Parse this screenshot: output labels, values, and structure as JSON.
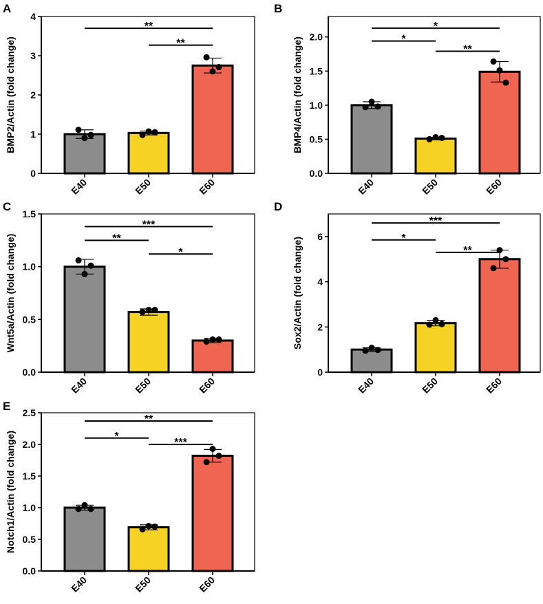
{
  "colors": {
    "E40": "#8c8c8c",
    "E50": "#f6d224",
    "E60": "#ef6552",
    "outline": "#000000"
  },
  "chart_data": [
    {
      "type": "bar",
      "panel": "A",
      "ylabel": "BMP2/Actin (fold change)",
      "categories": [
        "E40",
        "E50",
        "E60"
      ],
      "values": [
        1.0,
        1.03,
        2.75
      ],
      "sd": [
        0.11,
        0.05,
        0.19
      ],
      "points": [
        [
          1.11,
          0.9,
          0.98
        ],
        [
          0.98,
          1.07,
          1.05
        ],
        [
          2.96,
          2.6,
          2.71
        ]
      ],
      "ylim": [
        0,
        4
      ],
      "yticks": [
        0,
        1,
        2,
        3,
        4
      ],
      "ytick_labels": [
        "0",
        "1",
        "2",
        "3",
        "4"
      ],
      "significance": [
        {
          "from": "E40",
          "to": "E60",
          "label": "**",
          "y": 3.7
        },
        {
          "from": "E50",
          "to": "E60",
          "label": "**",
          "y": 3.27
        }
      ]
    },
    {
      "type": "bar",
      "panel": "B",
      "ylabel": "BMP4/Actin (fold change)",
      "categories": [
        "E40",
        "E50",
        "E60"
      ],
      "values": [
        1.0,
        0.51,
        1.49
      ],
      "sd": [
        0.05,
        0.02,
        0.15
      ],
      "points": [
        [
          0.97,
          1.05,
          0.98
        ],
        [
          0.5,
          0.53,
          0.52
        ],
        [
          1.64,
          1.51,
          1.33
        ]
      ],
      "ylim": [
        0,
        2.3
      ],
      "yticks": [
        0,
        0.5,
        1.0,
        1.5,
        2.0
      ],
      "ytick_labels": [
        "0.0",
        "0.5",
        "1.0",
        "1.5",
        "2.0"
      ],
      "significance": [
        {
          "from": "E40",
          "to": "E60",
          "label": "*",
          "y": 2.13
        },
        {
          "from": "E40",
          "to": "E50",
          "label": "*",
          "y": 1.94
        },
        {
          "from": "E50",
          "to": "E60",
          "label": "**",
          "y": 1.79
        }
      ]
    },
    {
      "type": "bar",
      "panel": "C",
      "ylabel": "Wnt5a/Actin (fold change)",
      "categories": [
        "E40",
        "E50",
        "E60"
      ],
      "values": [
        1.0,
        0.57,
        0.3
      ],
      "sd": [
        0.07,
        0.03,
        0.02
      ],
      "points": [
        [
          1.06,
          0.93,
          1.01
        ],
        [
          0.57,
          0.59,
          0.59
        ],
        [
          0.29,
          0.31,
          0.31
        ]
      ],
      "ylim": [
        0,
        1.5
      ],
      "yticks": [
        0,
        0.5,
        1.0,
        1.5
      ],
      "ytick_labels": [
        "0.0",
        "0.5",
        "1.0",
        "1.5"
      ],
      "significance": [
        {
          "from": "E40",
          "to": "E60",
          "label": "***",
          "y": 1.38
        },
        {
          "from": "E40",
          "to": "E50",
          "label": "**",
          "y": 1.25
        },
        {
          "from": "E50",
          "to": "E60",
          "label": "*",
          "y": 1.12
        }
      ]
    },
    {
      "type": "bar",
      "panel": "D",
      "ylabel": "Sox2/Actin (fold change)",
      "categories": [
        "E40",
        "E50",
        "E60"
      ],
      "values": [
        1.0,
        2.17,
        5.0
      ],
      "sd": [
        0.08,
        0.12,
        0.4
      ],
      "points": [
        [
          0.95,
          1.08,
          0.98
        ],
        [
          2.1,
          2.3,
          2.13
        ],
        [
          4.6,
          5.4,
          5.0
        ]
      ],
      "ylim": [
        0,
        7
      ],
      "yticks": [
        0,
        2,
        4,
        6
      ],
      "ytick_labels": [
        "0",
        "2",
        "4",
        "6"
      ],
      "significance": [
        {
          "from": "E40",
          "to": "E60",
          "label": "***",
          "y": 6.6
        },
        {
          "from": "E40",
          "to": "E50",
          "label": "*",
          "y": 5.85
        },
        {
          "from": "E50",
          "to": "E60",
          "label": "**",
          "y": 5.3
        }
      ]
    },
    {
      "type": "bar",
      "panel": "E",
      "ylabel": "Notch1/Actin (fold change)",
      "categories": [
        "E40",
        "E50",
        "E60"
      ],
      "values": [
        1.0,
        0.69,
        1.82
      ],
      "sd": [
        0.04,
        0.04,
        0.1
      ],
      "points": [
        [
          0.98,
          1.04,
          0.98
        ],
        [
          0.66,
          0.71,
          0.7
        ],
        [
          1.72,
          1.93,
          1.82
        ]
      ],
      "ylim": [
        0,
        2.5
      ],
      "yticks": [
        0,
        0.5,
        1.0,
        1.5,
        2.0,
        2.5
      ],
      "ytick_labels": [
        "0.0",
        "0.5",
        "1.0",
        "1.5",
        "2.0",
        "2.5"
      ],
      "significance": [
        {
          "from": "E40",
          "to": "E60",
          "label": "**",
          "y": 2.37
        },
        {
          "from": "E40",
          "to": "E50",
          "label": "*",
          "y": 2.1
        },
        {
          "from": "E50",
          "to": "E60",
          "label": "***",
          "y": 2.0
        }
      ]
    }
  ]
}
